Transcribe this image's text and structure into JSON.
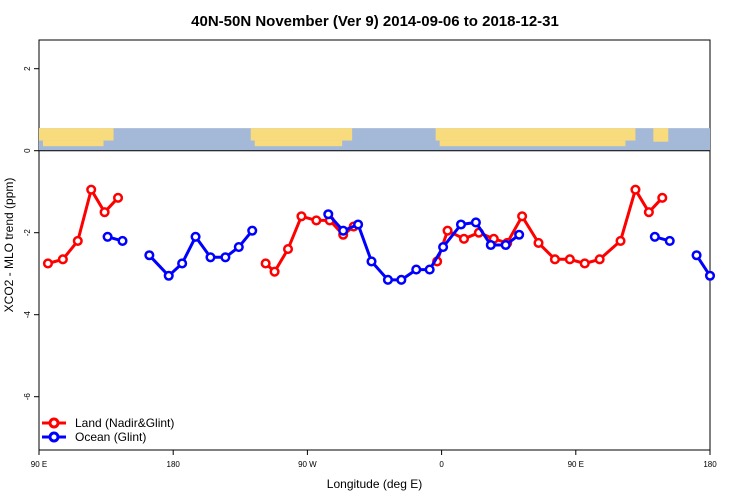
{
  "chart_data": {
    "type": "line",
    "title": "40N-50N November (Ver 9)   2014-09-06 to 2018-12-31",
    "xlabel": "Longitude (deg E)",
    "ylabel": "XCO2 - MLO trend (ppm)",
    "xlim": [
      90,
      540
    ],
    "ylim": [
      -7.3,
      2.7
    ],
    "x_ticks": [
      {
        "value": 90,
        "label": "90 E"
      },
      {
        "value": 180,
        "label": "180"
      },
      {
        "value": 270,
        "label": "90 W"
      },
      {
        "value": 360,
        "label": "0"
      },
      {
        "value": 450,
        "label": "90 E"
      },
      {
        "value": 540,
        "label": "180"
      }
    ],
    "y_ticks": [
      {
        "value": 2,
        "label": "2"
      },
      {
        "value": 0,
        "label": "0"
      },
      {
        "value": -2,
        "label": "-2"
      },
      {
        "value": -4,
        "label": "-4"
      },
      {
        "value": -6,
        "label": "-6"
      }
    ],
    "map_strip": {
      "y_range": [
        0,
        0.55
      ],
      "ocean_color": "#a4b8d8",
      "land_color": "#f8db7c"
    },
    "legend_position": "bottom-left",
    "series": [
      {
        "name": "Land (Nadir&Glint)",
        "color": "#ff0000",
        "segments": [
          {
            "x": [
              96,
              106,
              116,
              125,
              134,
              143
            ],
            "y": [
              -2.75,
              -2.65,
              -2.2,
              -0.95,
              -1.5,
              -1.15
            ]
          },
          {
            "x": [
              242,
              248,
              257,
              266,
              276,
              285,
              294,
              301
            ],
            "y": [
              -2.75,
              -2.95,
              -2.4,
              -1.6,
              -1.7,
              -1.7,
              -2.05,
              -1.85
            ]
          },
          {
            "x": [
              357,
              364,
              375,
              385,
              395,
              404,
              414,
              425,
              436,
              446,
              456,
              466,
              480,
              490,
              499,
              508
            ],
            "y": [
              -2.7,
              -1.95,
              -2.15,
              -2.0,
              -2.15,
              -2.25,
              -1.6,
              -2.25,
              -2.65,
              -2.65,
              -2.75,
              -2.65,
              -2.2,
              -0.95,
              -1.5,
              -1.15
            ]
          }
        ]
      },
      {
        "name": "Ocean (Glint)",
        "color": "#0000ff",
        "segments": [
          {
            "x": [
              136,
              146
            ],
            "y": [
              -2.1,
              -2.2
            ]
          },
          {
            "x": [
              164,
              177,
              186,
              195,
              205,
              215,
              224,
              233
            ],
            "y": [
              -2.55,
              -3.05,
              -2.75,
              -2.1,
              -2.6,
              -2.6,
              -2.35,
              -1.95
            ]
          },
          {
            "x": [
              284,
              294,
              304,
              313,
              324,
              333,
              343,
              352,
              361,
              373,
              383,
              393,
              403,
              412
            ],
            "y": [
              -1.55,
              -1.95,
              -1.8,
              -2.7,
              -3.15,
              -3.15,
              -2.9,
              -2.9,
              -2.35,
              -1.8,
              -1.75,
              -2.3,
              -2.3,
              -2.05
            ]
          },
          {
            "x": [
              503,
              513
            ],
            "y": [
              -2.1,
              -2.2
            ]
          },
          {
            "x": [
              531,
              540
            ],
            "y": [
              -2.55,
              -3.05
            ]
          }
        ]
      }
    ]
  }
}
